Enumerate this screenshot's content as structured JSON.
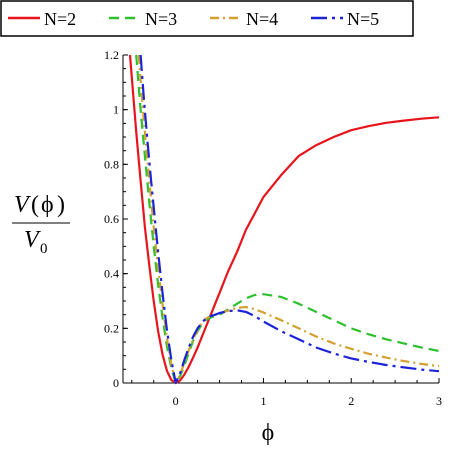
{
  "chart_data": {
    "type": "line",
    "title": "",
    "xlabel": "ϕ",
    "ylabel": {
      "numerator_V": "V",
      "numerator_open": "(",
      "numerator_arg": "ϕ",
      "numerator_close": ")",
      "denominator_V": "V",
      "denominator_sub": "0"
    },
    "xlim": [
      -0.6,
      3.0
    ],
    "ylim": [
      0,
      1.2
    ],
    "x_ticks": [
      {
        "value": 0,
        "label": "0"
      },
      {
        "value": 1,
        "label": "1"
      },
      {
        "value": 2,
        "label": "2"
      },
      {
        "value": 3,
        "label": "3"
      }
    ],
    "y_ticks": [
      {
        "value": 0,
        "label": "0"
      },
      {
        "value": 0.2,
        "label": "0.2"
      },
      {
        "value": 0.4,
        "label": "0.4"
      },
      {
        "value": 0.6,
        "label": "0.6"
      },
      {
        "value": 0.8,
        "label": "0.8"
      },
      {
        "value": 1.0,
        "label": "1"
      },
      {
        "value": 1.2,
        "label": "1.2"
      }
    ],
    "grid": false,
    "legend_position": "top",
    "series": [
      {
        "name": "N=2",
        "color": "#e8141c",
        "dash": "solid",
        "x": [
          -0.52,
          -0.45,
          -0.4,
          -0.35,
          -0.3,
          -0.25,
          -0.2,
          -0.15,
          -0.1,
          -0.05,
          0,
          0.05,
          0.1,
          0.15,
          0.2,
          0.25,
          0.3,
          0.35,
          0.4,
          0.45,
          0.5,
          0.55,
          0.6,
          0.7,
          0.8,
          0.9,
          1.0,
          1.2,
          1.4,
          1.6,
          1.8,
          2.0,
          2.2,
          2.4,
          2.6,
          2.8,
          3.0
        ],
        "y": [
          1.2,
          0.92,
          0.74,
          0.57,
          0.43,
          0.3,
          0.19,
          0.105,
          0.045,
          0.011,
          0,
          0.009,
          0.031,
          0.06,
          0.094,
          0.13,
          0.17,
          0.21,
          0.25,
          0.29,
          0.33,
          0.37,
          0.41,
          0.48,
          0.56,
          0.62,
          0.68,
          0.76,
          0.83,
          0.87,
          0.9,
          0.925,
          0.94,
          0.952,
          0.96,
          0.967,
          0.972
        ]
      },
      {
        "name": "N=3",
        "color": "#2fc02f",
        "dash": "long-dash",
        "x": [
          -0.45,
          -0.4,
          -0.35,
          -0.3,
          -0.25,
          -0.2,
          -0.15,
          -0.1,
          -0.05,
          0,
          0.05,
          0.1,
          0.15,
          0.2,
          0.25,
          0.3,
          0.35,
          0.4,
          0.45,
          0.5,
          0.6,
          0.7,
          0.8,
          0.9,
          1.0,
          1.2,
          1.4,
          1.6,
          1.8,
          2.0,
          2.2,
          2.4,
          2.6,
          2.8,
          3.0
        ],
        "y": [
          1.2,
          1.0,
          0.83,
          0.66,
          0.5,
          0.36,
          0.24,
          0.135,
          0.055,
          0,
          0.025,
          0.065,
          0.11,
          0.155,
          0.19,
          0.215,
          0.232,
          0.24,
          0.245,
          0.25,
          0.27,
          0.29,
          0.31,
          0.322,
          0.325,
          0.315,
          0.29,
          0.26,
          0.23,
          0.2,
          0.178,
          0.16,
          0.145,
          0.13,
          0.117
        ]
      },
      {
        "name": "N=4",
        "color": "#d4a030",
        "dash": "dash-dot",
        "x": [
          -0.42,
          -0.38,
          -0.34,
          -0.3,
          -0.25,
          -0.2,
          -0.15,
          -0.1,
          -0.05,
          0,
          0.05,
          0.1,
          0.15,
          0.2,
          0.25,
          0.3,
          0.35,
          0.4,
          0.45,
          0.5,
          0.6,
          0.7,
          0.8,
          0.9,
          1.0,
          1.2,
          1.4,
          1.6,
          1.8,
          2.0,
          2.2,
          2.4,
          2.6,
          2.8,
          3.0
        ],
        "y": [
          1.2,
          1.03,
          0.88,
          0.74,
          0.57,
          0.42,
          0.29,
          0.165,
          0.07,
          0,
          0.03,
          0.075,
          0.12,
          0.16,
          0.195,
          0.22,
          0.237,
          0.245,
          0.25,
          0.255,
          0.265,
          0.275,
          0.278,
          0.27,
          0.258,
          0.23,
          0.2,
          0.17,
          0.145,
          0.125,
          0.107,
          0.093,
          0.08,
          0.07,
          0.062
        ]
      },
      {
        "name": "N=5",
        "color": "#1c24d8",
        "dash": "long-dash-dot",
        "x": [
          -0.4,
          -0.36,
          -0.32,
          -0.28,
          -0.24,
          -0.2,
          -0.15,
          -0.1,
          -0.05,
          0,
          0.05,
          0.1,
          0.15,
          0.2,
          0.25,
          0.3,
          0.35,
          0.4,
          0.45,
          0.5,
          0.6,
          0.7,
          0.8,
          0.9,
          1.0,
          1.2,
          1.4,
          1.6,
          1.8,
          2.0,
          2.2,
          2.4,
          2.6,
          2.8,
          3.0
        ],
        "y": [
          1.2,
          1.03,
          0.88,
          0.74,
          0.61,
          0.48,
          0.33,
          0.195,
          0.085,
          0,
          0.035,
          0.085,
          0.13,
          0.17,
          0.2,
          0.222,
          0.237,
          0.245,
          0.25,
          0.256,
          0.263,
          0.266,
          0.26,
          0.245,
          0.225,
          0.19,
          0.16,
          0.13,
          0.108,
          0.09,
          0.077,
          0.066,
          0.057,
          0.049,
          0.043
        ]
      }
    ]
  }
}
